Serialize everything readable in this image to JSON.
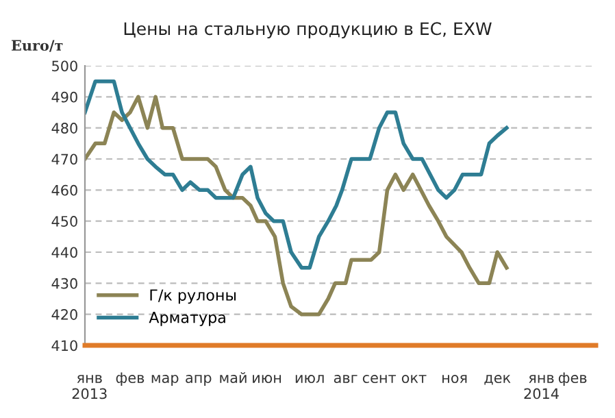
{
  "chart_data": {
    "type": "line",
    "title": "Цены на стальную продукцию в ЕС, EXW",
    "ylabel": "Euro/т",
    "xlim": [
      "2013-01-01",
      "2014-03-18"
    ],
    "ylim": [
      410,
      500
    ],
    "yticks": [
      410,
      420,
      430,
      440,
      450,
      460,
      470,
      480,
      490,
      500
    ],
    "xticks": [
      {
        "value": "2013-01-05",
        "label": "янв\n2013"
      },
      {
        "value": "2013-02-09",
        "label": "фев"
      },
      {
        "value": "2013-03-11",
        "label": "мар"
      },
      {
        "value": "2013-04-09",
        "label": "апр"
      },
      {
        "value": "2013-05-09",
        "label": "май"
      },
      {
        "value": "2013-06-07",
        "label": "июн"
      },
      {
        "value": "2013-07-14",
        "label": "июл"
      },
      {
        "value": "2013-08-14",
        "label": "авг"
      },
      {
        "value": "2013-09-12",
        "label": "сент"
      },
      {
        "value": "2013-10-12",
        "label": "окт"
      },
      {
        "value": "2013-11-16",
        "label": "ноя"
      },
      {
        "value": "2013-12-23",
        "label": "дек"
      },
      {
        "value": "2014-01-30",
        "label": "янв\n2014"
      },
      {
        "value": "2014-02-26",
        "label": "фев"
      }
    ],
    "grid": "y",
    "legend": "bottom left",
    "marker": "none",
    "line_style": "solid",
    "series": [
      {
        "name": "Г/к рулоны",
        "color": "#8c8455",
        "x": [
          "2013-01-01",
          "2013-01-10",
          "2013-01-18",
          "2013-01-26",
          "2013-02-02",
          "2013-02-09",
          "2013-02-16",
          "2013-02-24",
          "2013-03-03",
          "2013-03-09",
          "2013-03-18",
          "2013-03-26",
          "2013-04-17",
          "2013-04-24",
          "2013-05-02",
          "2013-05-09",
          "2013-05-17",
          "2013-05-24",
          "2013-05-30",
          "2013-06-06",
          "2013-06-14",
          "2013-06-21",
          "2013-06-28",
          "2013-07-07",
          "2013-07-22",
          "2013-07-30",
          "2013-08-05",
          "2013-08-14",
          "2013-08-19",
          "2013-09-05",
          "2013-09-12",
          "2013-09-19",
          "2013-09-26",
          "2013-10-03",
          "2013-10-11",
          "2013-10-18",
          "2013-10-25",
          "2013-11-02",
          "2013-11-09",
          "2013-11-22",
          "2013-11-29",
          "2013-12-07",
          "2013-12-16",
          "2013-12-23",
          "2013-12-31"
        ],
        "values": [
          470,
          475,
          475,
          485,
          482.5,
          485,
          490,
          480,
          490,
          480,
          480,
          470,
          470,
          467.5,
          460,
          457.5,
          457.5,
          455,
          450,
          450,
          445,
          430,
          422.5,
          420,
          420,
          425,
          430,
          430,
          437.5,
          437.5,
          440,
          460,
          465,
          460,
          465,
          460,
          455,
          450,
          445,
          440,
          435,
          430,
          430,
          440,
          435
        ]
      },
      {
        "name": "Арматура",
        "color": "#2e7d93",
        "x": [
          "2013-01-01",
          "2013-01-10",
          "2013-01-26",
          "2013-02-02",
          "2013-02-09",
          "2013-02-16",
          "2013-02-24",
          "2013-03-03",
          "2013-03-11",
          "2013-03-18",
          "2013-03-26",
          "2013-04-02",
          "2013-04-10",
          "2013-04-17",
          "2013-04-24",
          "2013-05-09",
          "2013-05-17",
          "2013-05-24",
          "2013-05-30",
          "2013-06-06",
          "2013-06-13",
          "2013-06-21",
          "2013-06-28",
          "2013-07-07",
          "2013-07-14",
          "2013-07-22",
          "2013-07-30",
          "2013-08-06",
          "2013-08-11",
          "2013-08-19",
          "2013-09-04",
          "2013-09-12",
          "2013-09-19",
          "2013-09-26",
          "2013-10-03",
          "2013-10-11",
          "2013-10-19",
          "2013-11-02",
          "2013-11-09",
          "2013-11-16",
          "2013-11-23",
          "2013-12-09",
          "2013-12-16",
          "2013-12-23",
          "2013-12-31"
        ],
        "values": [
          485,
          495,
          495,
          485,
          480,
          475,
          470,
          467.5,
          465,
          465,
          460,
          462.5,
          460,
          460,
          457.5,
          457.5,
          465,
          467.5,
          457.5,
          452.5,
          450,
          450,
          440,
          435,
          435,
          445,
          450,
          455,
          460,
          470,
          470,
          480,
          485,
          485,
          475,
          470,
          470,
          460,
          457.5,
          460,
          465,
          465,
          475,
          477.5,
          480
        ]
      }
    ]
  }
}
